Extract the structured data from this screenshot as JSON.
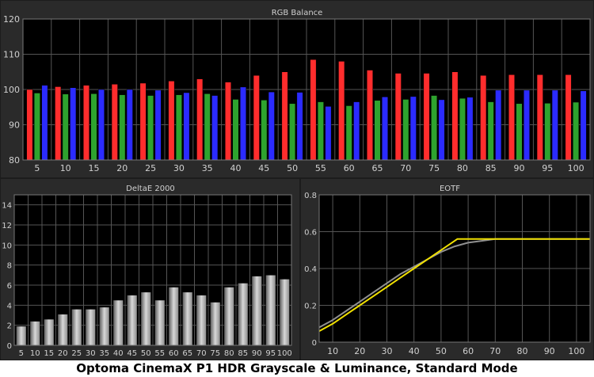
{
  "caption": "Optoma CinemaX P1 HDR Grayscale & Luminance, Standard Mode",
  "colors": {
    "panel_bg": "#2a2a2a",
    "plot_bg": "#000000",
    "grid": "#555555",
    "text": "#d0d0d0",
    "red": "#ff2d2d",
    "green": "#2ea32e",
    "blue": "#2b2bff",
    "eotf_target": "#909090",
    "eotf_measured": "#f0e000"
  },
  "chart_data": [
    {
      "type": "bar",
      "title": "RGB Balance",
      "categories": [
        "5",
        "10",
        "15",
        "20",
        "25",
        "30",
        "35",
        "40",
        "45",
        "50",
        "55",
        "60",
        "65",
        "70",
        "75",
        "80",
        "85",
        "90",
        "95",
        "100"
      ],
      "ylim": [
        80,
        120
      ],
      "yticks": [
        80,
        90,
        100,
        110,
        120
      ],
      "grid": true,
      "series": [
        {
          "color": "red",
          "values": [
            100.0,
            100.8,
            101.2,
            101.5,
            101.8,
            102.4,
            103.0,
            102.1,
            104.0,
            105.0,
            108.5,
            108.0,
            105.5,
            104.6,
            104.6,
            105.0,
            104.0,
            104.2,
            104.2,
            104.2
          ]
        },
        {
          "color": "green",
          "values": [
            99.0,
            98.7,
            98.8,
            98.5,
            98.3,
            98.5,
            98.8,
            97.2,
            97.0,
            96.0,
            96.5,
            95.4,
            96.9,
            97.2,
            98.3,
            97.5,
            96.5,
            96.0,
            96.1,
            96.4
          ]
        },
        {
          "color": "blue",
          "values": [
            101.2,
            100.5,
            100.0,
            100.0,
            99.8,
            99.1,
            98.3,
            100.7,
            99.3,
            99.2,
            95.2,
            96.5,
            97.9,
            98.0,
            97.1,
            97.8,
            99.8,
            99.8,
            99.8,
            99.6
          ]
        }
      ]
    },
    {
      "type": "bar",
      "title": "DeltaE 2000",
      "categories": [
        "5",
        "10",
        "15",
        "20",
        "25",
        "30",
        "35",
        "40",
        "45",
        "50",
        "55",
        "60",
        "65",
        "70",
        "75",
        "80",
        "85",
        "90",
        "95",
        "100"
      ],
      "values": [
        1.9,
        2.4,
        2.6,
        3.1,
        3.6,
        3.6,
        3.8,
        4.5,
        5.0,
        5.3,
        4.5,
        5.8,
        5.3,
        5.0,
        4.3,
        5.8,
        6.2,
        6.9,
        7.0,
        6.6
      ],
      "ylim": [
        0,
        15
      ],
      "yticks": [
        0,
        2,
        4,
        6,
        8,
        10,
        12,
        14
      ],
      "grid": true
    },
    {
      "type": "line",
      "title": "EOTF",
      "xlim": [
        5,
        105
      ],
      "xticks": [
        10,
        20,
        30,
        40,
        50,
        60,
        70,
        80,
        90,
        100
      ],
      "ylim": [
        0,
        0.8
      ],
      "yticks": [
        0,
        0.2,
        0.4,
        0.6,
        0.8
      ],
      "ytick_labels": [
        "0",
        "0.2",
        "0.4",
        "0.6",
        "0.8"
      ],
      "grid": true,
      "series": [
        {
          "color": "eotf_target",
          "x": [
            5,
            10,
            15,
            20,
            25,
            30,
            35,
            40,
            45,
            50,
            55,
            60,
            65,
            70,
            75,
            80,
            85,
            90,
            95,
            100,
            105
          ],
          "y": [
            0.08,
            0.12,
            0.17,
            0.22,
            0.27,
            0.32,
            0.37,
            0.41,
            0.45,
            0.49,
            0.52,
            0.54,
            0.55,
            0.56,
            0.56,
            0.56,
            0.56,
            0.56,
            0.56,
            0.56,
            0.56
          ]
        },
        {
          "color": "eotf_measured",
          "x": [
            5,
            10,
            15,
            20,
            25,
            30,
            35,
            40,
            45,
            50,
            56,
            60,
            70,
            80,
            90,
            100,
            105
          ],
          "y": [
            0.06,
            0.1,
            0.15,
            0.2,
            0.25,
            0.3,
            0.35,
            0.4,
            0.45,
            0.5,
            0.56,
            0.56,
            0.56,
            0.56,
            0.56,
            0.56,
            0.56
          ]
        }
      ]
    }
  ]
}
